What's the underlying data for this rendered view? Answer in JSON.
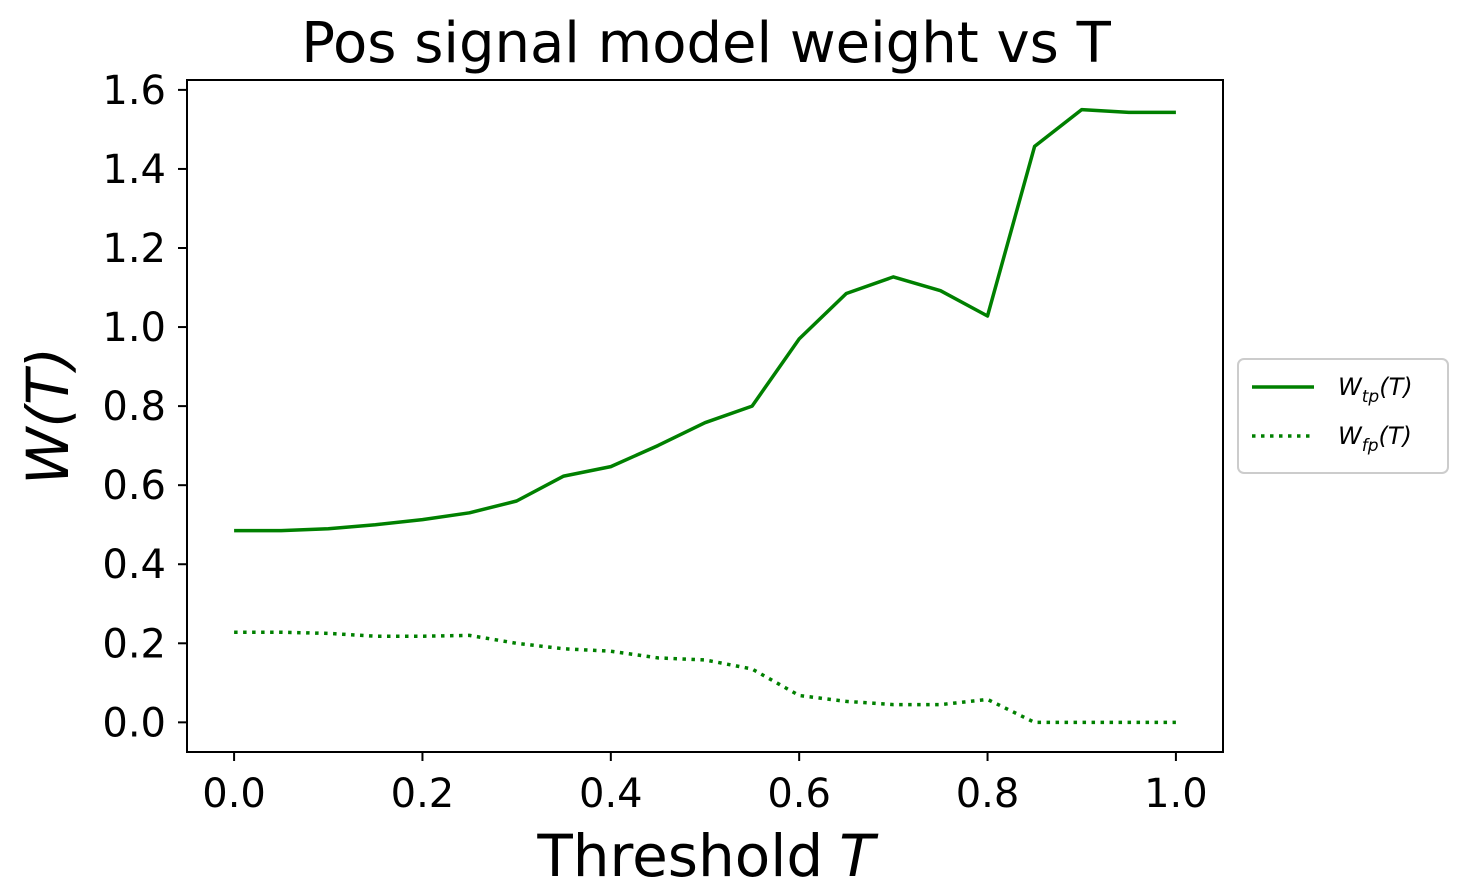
{
  "chart_data": {
    "type": "line",
    "title": "Pos signal model weight vs T",
    "xlabel": "Threshold",
    "xlabel_var": "T",
    "ylabel": "W(T)",
    "xlim": [
      -0.05,
      1.05
    ],
    "ylim": [
      -0.075,
      1.625
    ],
    "xticks": [
      0.0,
      0.2,
      0.4,
      0.6,
      0.8,
      1.0
    ],
    "xtick_labels": [
      "0.0",
      "0.2",
      "0.4",
      "0.6",
      "0.8",
      "1.0"
    ],
    "yticks": [
      0.0,
      0.2,
      0.4,
      0.6,
      0.8,
      1.0,
      1.2,
      1.4,
      1.6
    ],
    "ytick_labels": [
      "0.0",
      "0.2",
      "0.4",
      "0.6",
      "0.8",
      "1.0",
      "1.2",
      "1.4",
      "1.6"
    ],
    "grid": false,
    "legend_position": "outside-right",
    "x": [
      0.0,
      0.05,
      0.1,
      0.15,
      0.2,
      0.25,
      0.3,
      0.35,
      0.4,
      0.45,
      0.5,
      0.55,
      0.6,
      0.65,
      0.7,
      0.75,
      0.8,
      0.85,
      0.9,
      0.95,
      1.0
    ],
    "series": [
      {
        "name": "W_tp(T)",
        "legend": {
          "base": "W",
          "sub": "tp",
          "tail": "(T)"
        },
        "style": "solid",
        "color": "#008000",
        "values": [
          0.485,
          0.485,
          0.49,
          0.5,
          0.513,
          0.53,
          0.56,
          0.623,
          0.647,
          0.7,
          0.758,
          0.8,
          0.97,
          1.085,
          1.127,
          1.092,
          1.028,
          1.457,
          1.55,
          1.543,
          1.543
        ]
      },
      {
        "name": "W_fp(T)",
        "legend": {
          "base": "W",
          "sub": "fp",
          "tail": "(T)"
        },
        "style": "dotted",
        "color": "#008000",
        "values": [
          0.228,
          0.228,
          0.225,
          0.218,
          0.218,
          0.22,
          0.2,
          0.186,
          0.18,
          0.163,
          0.158,
          0.135,
          0.068,
          0.053,
          0.045,
          0.045,
          0.058,
          0.0,
          0.0,
          0.0,
          0.0
        ]
      }
    ]
  }
}
